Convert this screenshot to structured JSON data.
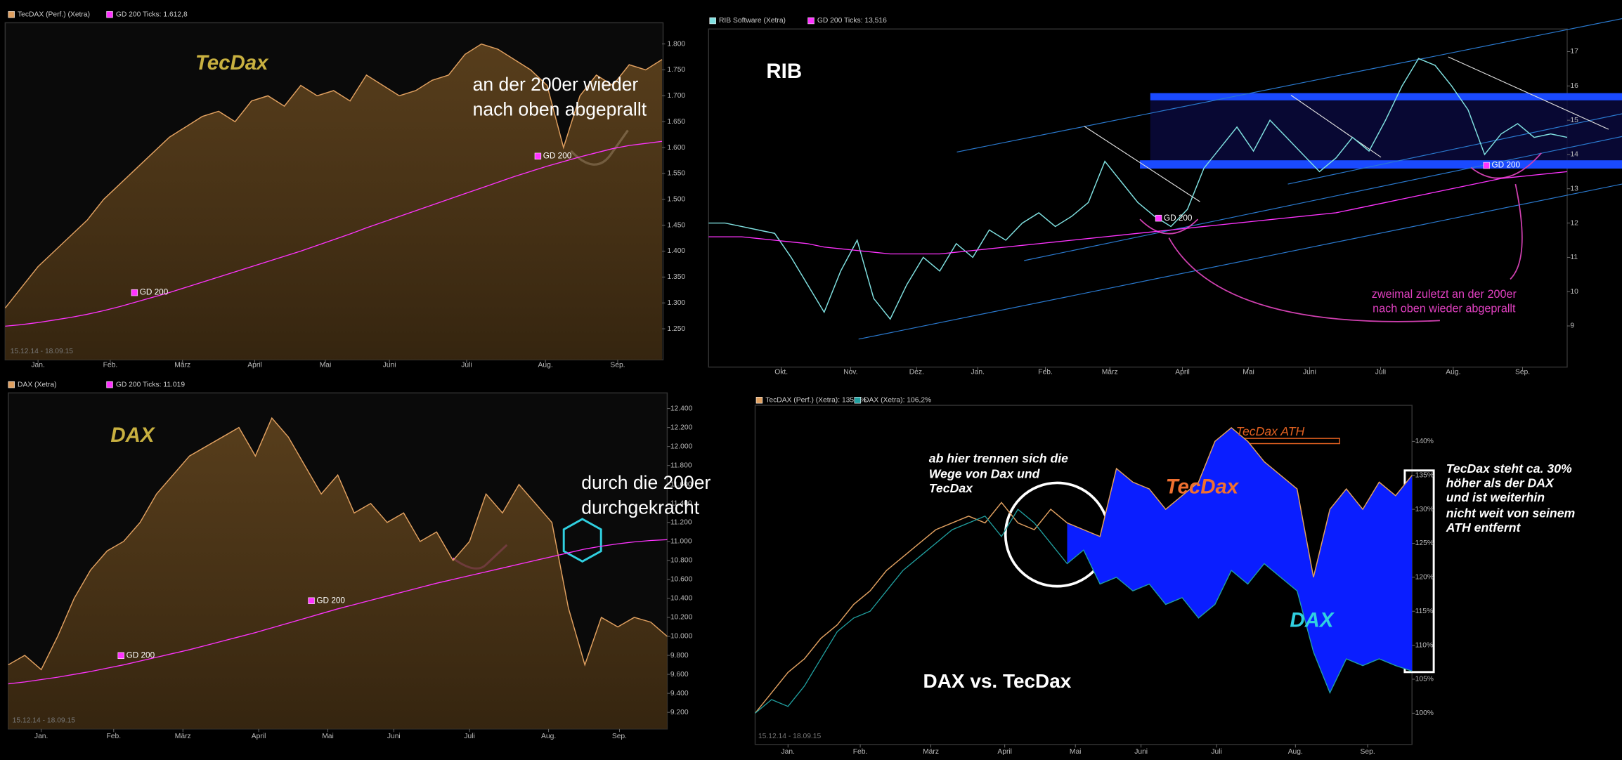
{
  "chart_data": [
    {
      "type": "line",
      "fill": true,
      "annotations": [
        "TecDax",
        "an der 200er wieder",
        "nach oben abgeprallt",
        "GD 200",
        "GD 200",
        "15.12.14 - 18.09.15"
      ],
      "x": [
        0,
        1,
        2,
        3,
        4,
        5,
        6,
        7,
        8,
        9,
        10,
        11,
        12,
        13,
        14,
        15,
        16,
        17,
        18,
        19,
        20,
        21,
        22,
        23,
        24,
        25,
        26,
        27,
        28,
        29,
        30,
        31,
        32,
        33,
        34,
        35,
        36,
        37,
        38,
        39,
        40
      ],
      "xlim": [
        0,
        40
      ],
      "xticks": [
        {
          "value": 2,
          "label": "Jan."
        },
        {
          "value": 6.4,
          "label": "Feb."
        },
        {
          "value": 10.8,
          "label": "März"
        },
        {
          "value": 15.2,
          "label": "April"
        },
        {
          "value": 19.5,
          "label": "Mai"
        },
        {
          "value": 23.4,
          "label": "Juni"
        },
        {
          "value": 28.1,
          "label": "Juli"
        },
        {
          "value": 32.9,
          "label": "Aug."
        },
        {
          "value": 37.3,
          "label": "Sep."
        }
      ],
      "ylim": [
        1190,
        1825
      ],
      "yticks": [
        {
          "value": 1250,
          "label": "1.250"
        },
        {
          "value": 1300,
          "label": "1.300"
        },
        {
          "value": 1350,
          "label": "1.350"
        },
        {
          "value": 1400,
          "label": "1.400"
        },
        {
          "value": 1450,
          "label": "1.450"
        },
        {
          "value": 1500,
          "label": "1.500"
        },
        {
          "value": 1550,
          "label": "1.550"
        },
        {
          "value": 1600,
          "label": "1.600"
        },
        {
          "value": 1650,
          "label": "1.650"
        },
        {
          "value": 1700,
          "label": "1.700"
        },
        {
          "value": 1750,
          "label": "1.750"
        },
        {
          "value": 1800,
          "label": "1.800"
        }
      ],
      "series": [
        {
          "name": "TecDAX (Perf.) (Xetra)",
          "color": "#e0a060",
          "values": [
            1290,
            1330,
            1370,
            1400,
            1430,
            1460,
            1500,
            1530,
            1560,
            1590,
            1620,
            1640,
            1660,
            1670,
            1650,
            1690,
            1700,
            1680,
            1720,
            1700,
            1710,
            1690,
            1740,
            1720,
            1700,
            1710,
            1730,
            1740,
            1780,
            1800,
            1790,
            1770,
            1750,
            1720,
            1600,
            1700,
            1740,
            1720,
            1760,
            1750,
            1770
          ]
        },
        {
          "name": "GD 200 Ticks: 1.612,8",
          "color": "#ff33ff",
          "values": [
            1255,
            1258,
            1262,
            1267,
            1272,
            1278,
            1285,
            1293,
            1302,
            1311,
            1320,
            1330,
            1340,
            1350,
            1360,
            1370,
            1380,
            1390,
            1400,
            1411,
            1422,
            1433,
            1445,
            1456,
            1467,
            1478,
            1489,
            1500,
            1511,
            1522,
            1533,
            1544,
            1554,
            1564,
            1573,
            1582,
            1590,
            1598,
            1604,
            1608,
            1612
          ]
        }
      ]
    },
    {
      "type": "line",
      "fill": true,
      "annotations": [
        "DAX",
        "durch die 200er",
        "durchgekracht",
        "GD 200",
        "GD 200",
        "15.12.14 - 18.09.15"
      ],
      "x": [
        0,
        1,
        2,
        3,
        4,
        5,
        6,
        7,
        8,
        9,
        10,
        11,
        12,
        13,
        14,
        15,
        16,
        17,
        18,
        19,
        20,
        21,
        22,
        23,
        24,
        25,
        26,
        27,
        28,
        29,
        30,
        31,
        32,
        33,
        34,
        35,
        36,
        37,
        38,
        39,
        40
      ],
      "xlim": [
        0,
        40
      ],
      "xticks": [
        {
          "value": 2,
          "label": "Jan."
        },
        {
          "value": 6.4,
          "label": "Feb."
        },
        {
          "value": 10.6,
          "label": "März"
        },
        {
          "value": 15.2,
          "label": "April"
        },
        {
          "value": 19.4,
          "label": "Mai"
        },
        {
          "value": 23.4,
          "label": "Juni"
        },
        {
          "value": 28,
          "label": "Juli"
        },
        {
          "value": 32.8,
          "label": "Aug."
        },
        {
          "value": 37.1,
          "label": "Sep."
        }
      ],
      "ylim": [
        9025,
        12510
      ],
      "yticks": [
        {
          "value": 9200,
          "label": "9.200"
        },
        {
          "value": 9400,
          "label": "9.400"
        },
        {
          "value": 9600,
          "label": "9.600"
        },
        {
          "value": 9800,
          "label": "9.800"
        },
        {
          "value": 10000,
          "label": "10.000"
        },
        {
          "value": 10200,
          "label": "10.200"
        },
        {
          "value": 10400,
          "label": "10.400"
        },
        {
          "value": 10600,
          "label": "10.600"
        },
        {
          "value": 10800,
          "label": "10.800"
        },
        {
          "value": 11000,
          "label": "11.000"
        },
        {
          "value": 11200,
          "label": "11.200"
        },
        {
          "value": 11400,
          "label": "11.400"
        },
        {
          "value": 11600,
          "label": "11.600"
        },
        {
          "value": 11800,
          "label": "11.800"
        },
        {
          "value": 12000,
          "label": "12.000"
        },
        {
          "value": 12200,
          "label": "12.200"
        },
        {
          "value": 12400,
          "label": "12.400"
        }
      ],
      "series": [
        {
          "name": "DAX (Xetra)",
          "color": "#e0a060",
          "values": [
            9700,
            9800,
            9650,
            10000,
            10400,
            10700,
            10900,
            11000,
            11200,
            11500,
            11700,
            11900,
            12000,
            12100,
            12200,
            11900,
            12300,
            12100,
            11800,
            11500,
            11700,
            11300,
            11400,
            11200,
            11300,
            11000,
            11100,
            10800,
            11000,
            11500,
            11300,
            11600,
            11400,
            11200,
            10300,
            9700,
            10200,
            10100,
            10200,
            10150,
            10000
          ]
        },
        {
          "name": "GD 200 Ticks: 11.019",
          "color": "#ff33ff",
          "values": [
            9500,
            9520,
            9545,
            9570,
            9600,
            9630,
            9665,
            9700,
            9740,
            9780,
            9820,
            9860,
            9905,
            9950,
            9995,
            10040,
            10090,
            10140,
            10190,
            10240,
            10290,
            10335,
            10380,
            10425,
            10470,
            10515,
            10560,
            10600,
            10640,
            10680,
            10720,
            10760,
            10800,
            10840,
            10880,
            10920,
            10950,
            10975,
            10995,
            11010,
            11019
          ]
        }
      ]
    },
    {
      "type": "line",
      "fill": false,
      "annotations": [
        "RIB",
        "zweimal zuletzt an der 200er",
        "nach oben wieder abgeprallt",
        "GD 200",
        "GD 200"
      ],
      "x": [
        0,
        1,
        2,
        3,
        4,
        5,
        6,
        7,
        8,
        9,
        10,
        11,
        12,
        13,
        14,
        15,
        16,
        17,
        18,
        19,
        20,
        21,
        22,
        23,
        24,
        25,
        26,
        27,
        28,
        29,
        30,
        31,
        32,
        33,
        34,
        35,
        36,
        37,
        38,
        39,
        40,
        41,
        42,
        43,
        44,
        45,
        46,
        47,
        48,
        49,
        50,
        51,
        52
      ],
      "xlim": [
        0,
        52
      ],
      "xticks": [
        {
          "value": 4.4,
          "label": "Okt."
        },
        {
          "value": 8.6,
          "label": "Nov."
        },
        {
          "value": 12.6,
          "label": "Dez."
        },
        {
          "value": 16.3,
          "label": "Jan."
        },
        {
          "value": 20.4,
          "label": "Feb."
        },
        {
          "value": 24.3,
          "label": "März"
        },
        {
          "value": 28.7,
          "label": "April"
        },
        {
          "value": 32.7,
          "label": "Mai"
        },
        {
          "value": 36.4,
          "label": "Juni"
        },
        {
          "value": 40.7,
          "label": "Juli"
        },
        {
          "value": 45.1,
          "label": "Aug."
        },
        {
          "value": 49.3,
          "label": "Sep."
        }
      ],
      "ylim": [
        7.8,
        17.6
      ],
      "yticks": [
        9,
        10,
        11,
        12,
        13,
        14,
        15,
        16,
        17
      ],
      "series": [
        {
          "name": "RIB Software (Xetra)",
          "color": "#7fe0e0",
          "values": [
            12.0,
            12.0,
            11.9,
            11.8,
            11.7,
            11.0,
            10.2,
            9.4,
            10.6,
            11.5,
            9.8,
            9.2,
            10.2,
            11.0,
            10.6,
            11.4,
            11.0,
            11.8,
            11.5,
            12.0,
            12.3,
            11.9,
            12.2,
            12.6,
            13.8,
            13.2,
            12.6,
            12.2,
            11.9,
            12.4,
            13.6,
            14.2,
            14.8,
            14.1,
            15.0,
            14.5,
            14.0,
            13.5,
            13.9,
            14.5,
            14.1,
            15.0,
            16.0,
            16.8,
            16.6,
            16.0,
            15.3,
            14.0,
            14.6,
            14.9,
            14.5,
            14.6,
            14.5
          ]
        },
        {
          "name": "GD 200 Ticks: 13,516",
          "color": "#ff33ff",
          "values": [
            11.6,
            11.6,
            11.6,
            11.55,
            11.5,
            11.45,
            11.4,
            11.3,
            11.25,
            11.2,
            11.15,
            11.1,
            11.1,
            11.1,
            11.1,
            11.15,
            11.2,
            11.25,
            11.3,
            11.35,
            11.4,
            11.45,
            11.5,
            11.55,
            11.6,
            11.65,
            11.7,
            11.75,
            11.8,
            11.85,
            11.9,
            11.95,
            12.0,
            12.05,
            12.1,
            12.15,
            12.2,
            12.25,
            12.3,
            12.4,
            12.5,
            12.6,
            12.7,
            12.8,
            12.9,
            13.0,
            13.1,
            13.2,
            13.3,
            13.35,
            13.4,
            13.45,
            13.5
          ]
        }
      ]
    },
    {
      "type": "line",
      "fill": false,
      "annotations": [
        "TecDax ATH",
        "ab hier trennen sich die",
        "Wege von Dax und",
        "TecDax",
        "TecDax",
        "DAX",
        "DAX vs. TecDax",
        "TecDax steht ca. 30%",
        "höher als der DAX",
        "und ist weiterhin",
        "nicht weit von seinem",
        "ATH entfernt",
        "15.12.14 - 18.09.15"
      ],
      "x": [
        0,
        1,
        2,
        3,
        4,
        5,
        6,
        7,
        8,
        9,
        10,
        11,
        12,
        13,
        14,
        15,
        16,
        17,
        18,
        19,
        20,
        21,
        22,
        23,
        24,
        25,
        26,
        27,
        28,
        29,
        30,
        31,
        32,
        33,
        34,
        35,
        36,
        37,
        38,
        39,
        40
      ],
      "xlim": [
        0,
        40
      ],
      "xticks": [
        {
          "value": 2,
          "label": "Jan."
        },
        {
          "value": 6.4,
          "label": "Feb."
        },
        {
          "value": 10.7,
          "label": "März"
        },
        {
          "value": 15.2,
          "label": "April"
        },
        {
          "value": 19.5,
          "label": "Mai"
        },
        {
          "value": 23.5,
          "label": "Juni"
        },
        {
          "value": 28.1,
          "label": "Juli"
        },
        {
          "value": 32.9,
          "label": "Aug."
        },
        {
          "value": 37.3,
          "label": "Sep."
        }
      ],
      "ylim": [
        95.4,
        145.3
      ],
      "yticks": [
        {
          "value": 100,
          "label": "100%"
        },
        {
          "value": 105,
          "label": "105%"
        },
        {
          "value": 110,
          "label": "110%"
        },
        {
          "value": 115,
          "label": "115%"
        },
        {
          "value": 120,
          "label": "120%"
        },
        {
          "value": 125,
          "label": "125%"
        },
        {
          "value": 130,
          "label": "130%"
        },
        {
          "value": 135,
          "label": "135%"
        },
        {
          "value": 140,
          "label": "140%"
        }
      ],
      "series": [
        {
          "name": "TecDAX (Perf.) (Xetra): 135,0%",
          "color": "#e0a060",
          "values": [
            100,
            103,
            106,
            108,
            111,
            113,
            116,
            118,
            121,
            123,
            125,
            127,
            128,
            129,
            128,
            131,
            128,
            127,
            130,
            128,
            127,
            126,
            136,
            134,
            133,
            130,
            132,
            134,
            140,
            142,
            140,
            137,
            135,
            133,
            120,
            130,
            133,
            130,
            134,
            132,
            135.0
          ]
        },
        {
          "name": "DAX (Xetra): 106,2%",
          "color": "#20a0a0",
          "values": [
            100,
            102,
            101,
            104,
            108,
            112,
            114,
            115,
            118,
            121,
            123,
            125,
            127,
            128,
            129,
            126,
            130,
            128,
            125,
            122,
            124,
            119,
            120,
            118,
            119,
            116,
            117,
            114,
            116,
            121,
            119,
            122,
            120,
            118,
            109,
            103,
            108,
            107,
            108,
            107,
            106.2
          ]
        }
      ]
    }
  ]
}
